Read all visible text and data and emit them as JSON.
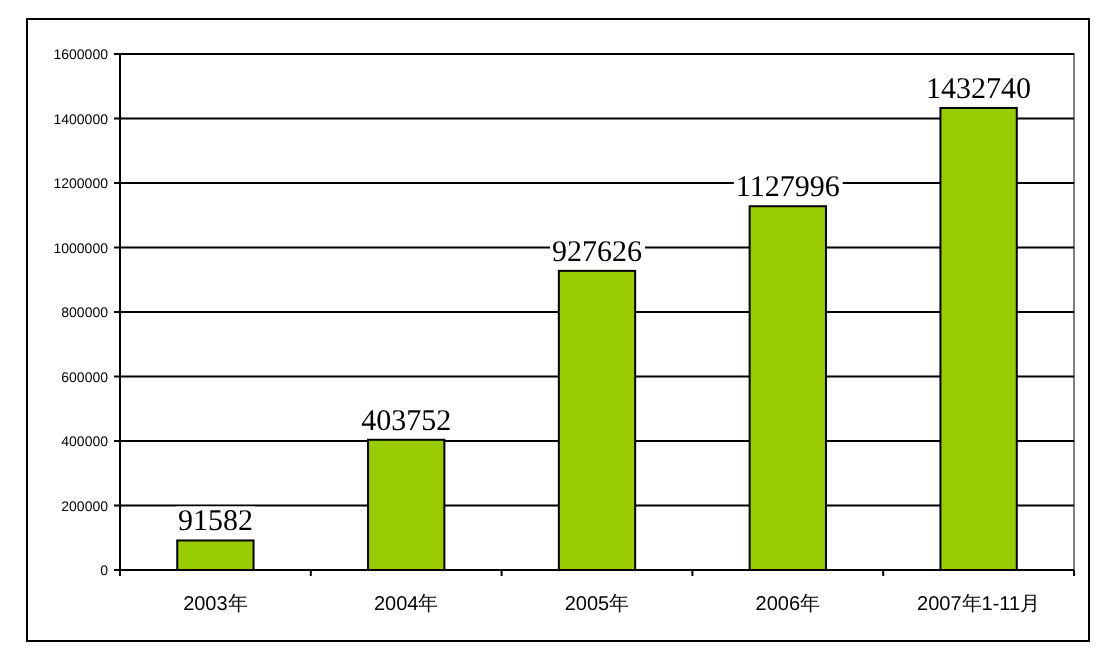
{
  "chart_data": {
    "type": "bar",
    "categories": [
      "2003年",
      "2004年",
      "2005年",
      "2006年",
      "2007年1-11月"
    ],
    "values": [
      91582,
      403752,
      927626,
      1127996,
      1432740
    ],
    "color": "#99cc00",
    "ylim": [
      0,
      1600000
    ],
    "yticks": [
      0,
      200000,
      400000,
      600000,
      800000,
      1000000,
      1200000,
      1400000,
      1600000
    ],
    "grid": "y",
    "data_labels": true
  }
}
